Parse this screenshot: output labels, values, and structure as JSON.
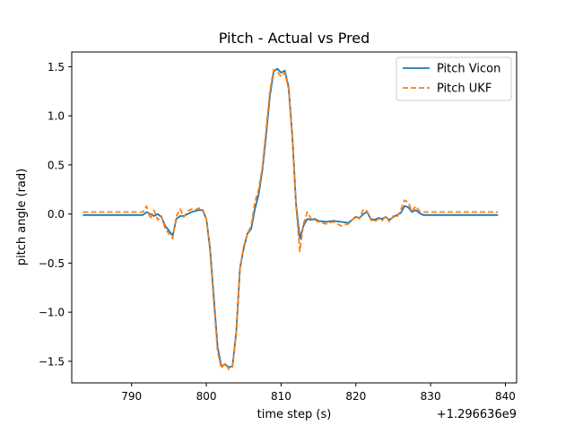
{
  "chart_data": {
    "type": "line",
    "title": "Pitch - Actual vs Pred",
    "xlabel": "time step (s)",
    "ylabel": "pitch angle (rad)",
    "x_offset_label": "+1.296636e9",
    "xlim": [
      782,
      841.5
    ],
    "ylim": [
      -1.72,
      1.65
    ],
    "xticks": [
      790,
      800,
      810,
      820,
      830,
      840
    ],
    "yticks": [
      -1.5,
      -1.0,
      -0.5,
      0.0,
      0.5,
      1.0,
      1.5
    ],
    "xtick_labels": [
      "790",
      "800",
      "810",
      "820",
      "830",
      "840"
    ],
    "ytick_labels": [
      "−1.5",
      "−1.0",
      "−0.5",
      "0.0",
      "0.5",
      "1.0",
      "1.5"
    ],
    "grid": false,
    "legend_position": "top-right",
    "series": [
      {
        "name": "Pitch Vicon",
        "color": "#1f77b4",
        "style": "solid",
        "x": [
          783.5,
          786,
          788,
          790,
          791.5,
          792,
          792.5,
          793,
          793.5,
          794,
          794.5,
          795,
          795.5,
          796,
          796.5,
          797,
          797.5,
          798,
          798.5,
          799,
          799.5,
          800,
          800.5,
          801,
          801.5,
          802,
          802.5,
          803,
          803.5,
          804,
          804.5,
          805,
          805.5,
          806,
          806.5,
          807,
          807.5,
          808,
          808.5,
          809,
          809.5,
          810,
          810.5,
          811,
          811.5,
          812,
          812.5,
          813,
          813.5,
          814,
          814.5,
          815,
          816,
          817,
          818,
          819,
          820,
          820.5,
          821,
          821.5,
          822,
          822.5,
          823,
          823.5,
          824,
          824.5,
          825,
          825.5,
          826,
          826.5,
          827,
          827.5,
          828,
          828.5,
          829,
          831,
          834,
          837,
          839
        ],
        "y": [
          -0.01,
          -0.01,
          -0.01,
          -0.01,
          -0.01,
          0.02,
          0.0,
          -0.02,
          0.0,
          -0.03,
          -0.12,
          -0.17,
          -0.22,
          -0.05,
          -0.02,
          -0.02,
          0.0,
          0.02,
          0.03,
          0.04,
          0.04,
          -0.05,
          -0.35,
          -0.85,
          -1.35,
          -1.55,
          -1.53,
          -1.56,
          -1.55,
          -1.2,
          -0.55,
          -0.35,
          -0.2,
          -0.15,
          0.05,
          0.2,
          0.45,
          0.8,
          1.2,
          1.45,
          1.48,
          1.44,
          1.46,
          1.3,
          0.8,
          0.1,
          -0.25,
          -0.12,
          -0.05,
          -0.06,
          -0.05,
          -0.07,
          -0.08,
          -0.07,
          -0.08,
          -0.09,
          -0.03,
          -0.04,
          0.0,
          0.02,
          -0.05,
          -0.06,
          -0.04,
          -0.05,
          -0.03,
          -0.06,
          -0.03,
          -0.01,
          0.01,
          0.08,
          0.07,
          0.02,
          0.04,
          0.01,
          -0.01,
          -0.01,
          -0.01,
          -0.01,
          -0.01
        ]
      },
      {
        "name": "Pitch UKF",
        "color": "#ff7f0e",
        "style": "dashed",
        "x": [
          783.5,
          786,
          788,
          790,
          791.5,
          792,
          792.5,
          793,
          793.5,
          794,
          794.5,
          795,
          795.5,
          796,
          796.5,
          797,
          797.5,
          798,
          798.5,
          799,
          799.5,
          800,
          800.5,
          801,
          801.5,
          802,
          802.5,
          803,
          803.5,
          804,
          804.5,
          805,
          805.5,
          806,
          806.5,
          807,
          807.5,
          808,
          808.5,
          809,
          809.5,
          810,
          810.5,
          811,
          811.5,
          812,
          812.5,
          813,
          813.5,
          814,
          814.5,
          815,
          816,
          817,
          818,
          819,
          820,
          820.5,
          821,
          821.5,
          822,
          822.5,
          823,
          823.5,
          824,
          824.5,
          825,
          825.5,
          826,
          826.5,
          827,
          827.5,
          828,
          828.5,
          829,
          831,
          834,
          837,
          839
        ],
        "y": [
          0.02,
          0.02,
          0.02,
          0.02,
          0.02,
          0.08,
          -0.05,
          0.04,
          -0.06,
          -0.02,
          -0.15,
          -0.2,
          -0.25,
          -0.02,
          0.05,
          -0.03,
          0.03,
          0.05,
          0.04,
          0.06,
          0.05,
          -0.05,
          -0.38,
          -0.9,
          -1.4,
          -1.57,
          -1.52,
          -1.58,
          -1.56,
          -1.22,
          -0.55,
          -0.33,
          -0.2,
          -0.12,
          0.12,
          0.25,
          0.48,
          0.85,
          1.25,
          1.47,
          1.45,
          1.4,
          1.44,
          1.28,
          0.78,
          0.08,
          -0.38,
          -0.1,
          0.02,
          -0.05,
          -0.06,
          -0.08,
          -0.1,
          -0.08,
          -0.12,
          -0.1,
          -0.02,
          -0.05,
          0.05,
          0.03,
          -0.06,
          -0.08,
          -0.05,
          -0.07,
          -0.02,
          -0.08,
          -0.02,
          -0.03,
          0.04,
          0.14,
          0.12,
          0.03,
          0.08,
          0.03,
          0.02,
          0.02,
          0.02,
          0.02,
          0.02
        ]
      }
    ]
  }
}
